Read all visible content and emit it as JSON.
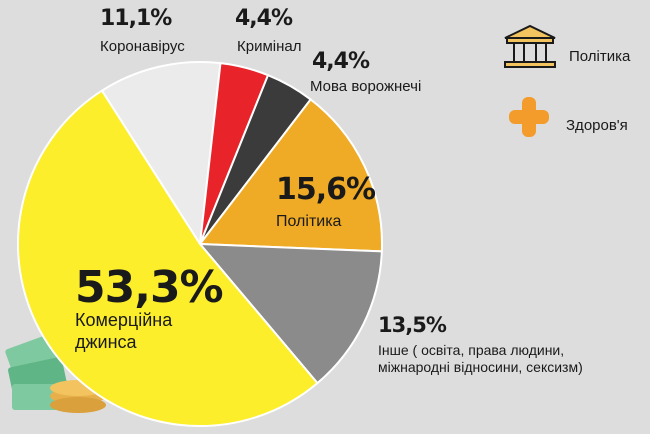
{
  "chart_data": {
    "type": "pie",
    "categories": [
      "Коронавірус",
      "Кримінал",
      "Мова ворожнечі",
      "Політика",
      "Інше ( освіта, права людини, міжнародні відносини, сексизм)",
      "Комерційна джинса"
    ],
    "values": [
      11.1,
      4.4,
      4.4,
      15.6,
      13.5,
      53.3
    ],
    "value_labels": [
      "11,1%",
      "4,4%",
      "4,4%",
      "15,6%",
      "13,5%",
      "53,3%"
    ],
    "colors": [
      "#ebebeb",
      "#e8232a",
      "#3b3b3b",
      "#efab25",
      "#8b8b8b",
      "#fcee2a"
    ],
    "legend": [
      "Політика",
      "Здоров'я"
    ]
  }
}
